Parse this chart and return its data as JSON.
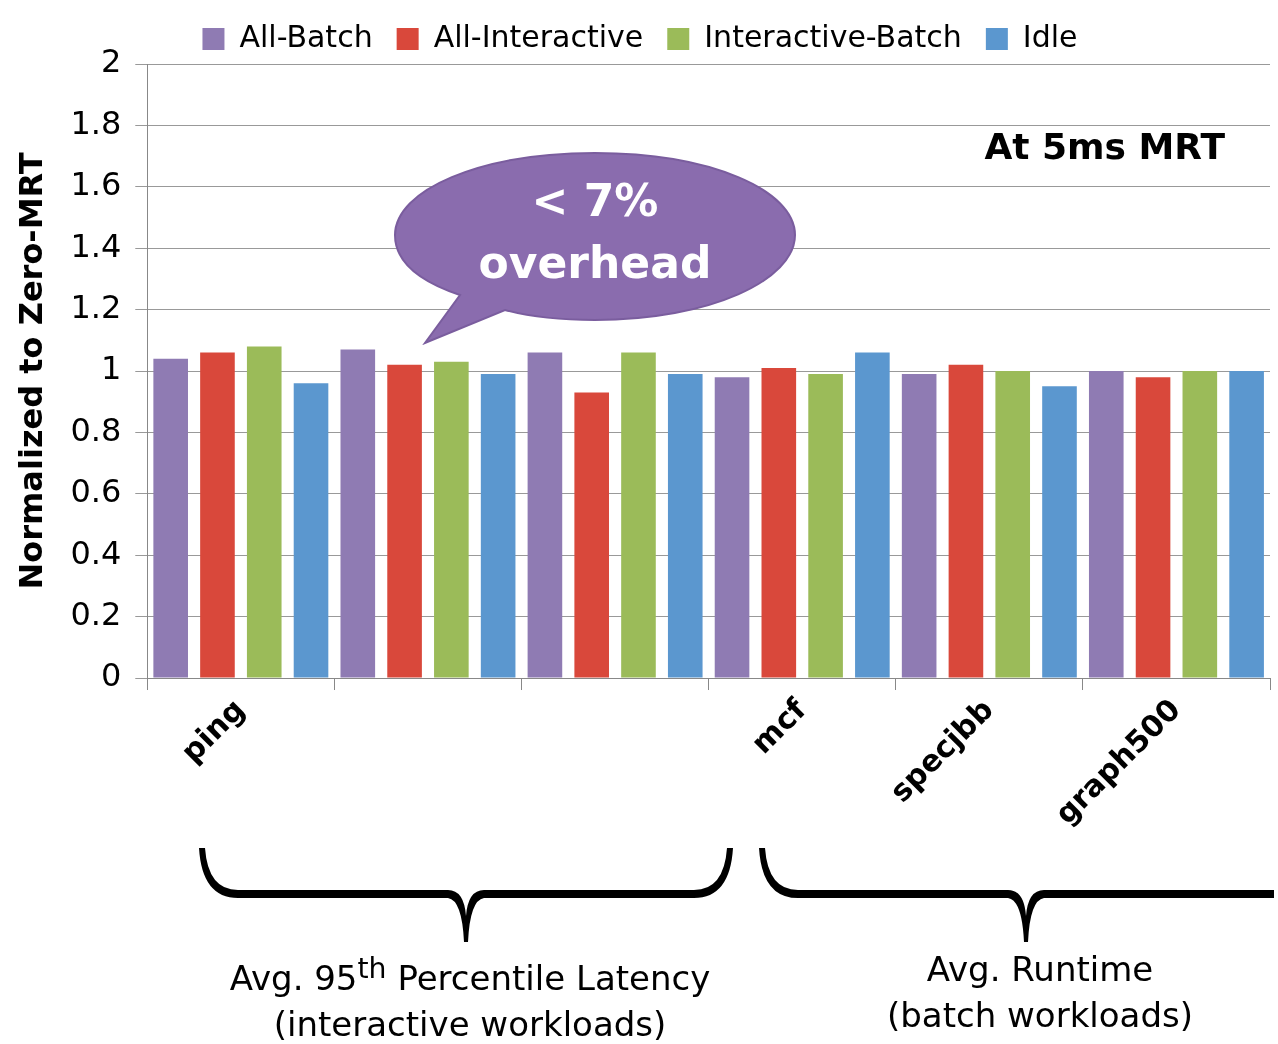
{
  "chart_data": {
    "type": "bar",
    "ylabel": "Normalized to Zero-MRT",
    "categories": [
      "ping",
      null,
      null,
      "mcf",
      "specjbb",
      "graph500"
    ],
    "series": [
      {
        "name": "All-Batch",
        "color": "#8f7bb3",
        "values": [
          1.04,
          1.07,
          1.06,
          0.98,
          0.99,
          1.0
        ]
      },
      {
        "name": "All-Interactive",
        "color": "#d9483b",
        "values": [
          1.06,
          1.02,
          0.93,
          1.01,
          1.02,
          0.98
        ]
      },
      {
        "name": "Interactive-Batch",
        "color": "#9bbb59",
        "values": [
          1.08,
          1.03,
          1.06,
          0.99,
          1.0,
          1.0
        ]
      },
      {
        "name": "Idle",
        "color": "#5b97cf",
        "values": [
          0.96,
          0.99,
          0.99,
          1.06,
          0.95,
          1.0
        ]
      }
    ],
    "ylim": [
      0,
      2
    ],
    "yticks": [
      0,
      0.2,
      0.4,
      0.6,
      0.8,
      1,
      1.2,
      1.4,
      1.6,
      1.8,
      2
    ],
    "grid": "y",
    "legend": "top",
    "annotations": [
      "< 7% overhead",
      "At 5ms MRT",
      "Avg. 95$^{th}$ Percentile Latency (interactive workloads)",
      "Avg. Runtime (batch workloads)"
    ]
  }
}
